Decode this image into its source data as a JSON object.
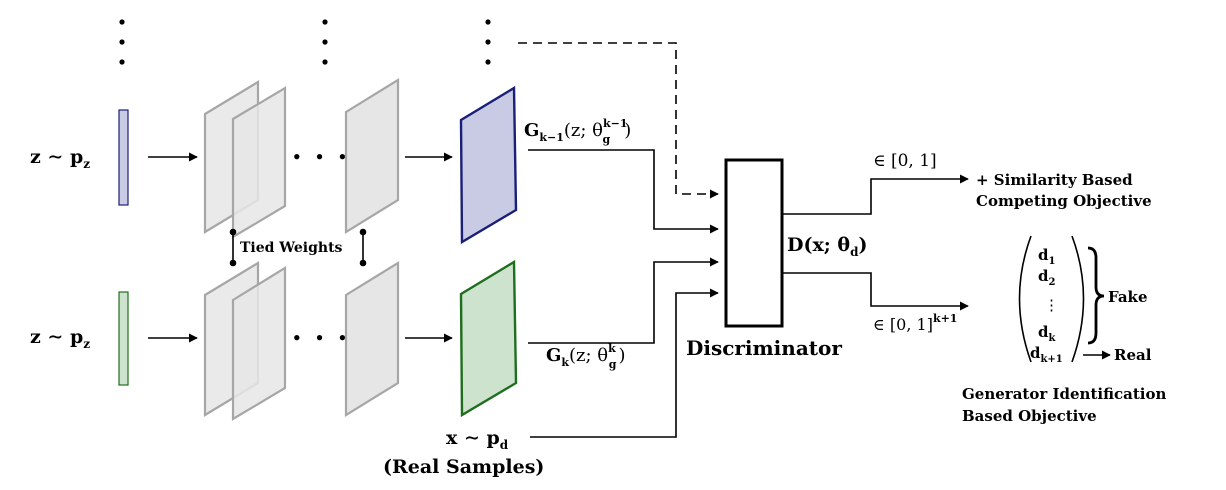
{
  "inputs": {
    "top": {
      "z": "z",
      "tilde": " ∼ ",
      "p": "p",
      "p_sub": "z"
    },
    "bottom": {
      "z": "z",
      "tilde": " ∼ ",
      "p": "p",
      "p_sub": "z"
    }
  },
  "tied_weights": "Tied Weights",
  "ellipsis": "• • •",
  "generator_top_output": {
    "name": "G",
    "name_sub": "k−1",
    "arg": "(z; θ",
    "sup": "k−1",
    "sub": "g",
    "close": ")"
  },
  "generator_bottom_output": {
    "name": "G",
    "name_sub": "k",
    "arg": "(z; θ",
    "sup": "k",
    "sub": "g",
    "close": ")"
  },
  "real_input": {
    "x": "x",
    "tilde": " ∼ ",
    "p": "p",
    "p_sub": "d",
    "caption": "(Real Samples)"
  },
  "discriminator": {
    "label": "Discriminator",
    "func": "D(x; θ",
    "func_sub": "d",
    "func_close": ")"
  },
  "output_top": {
    "range": "∈ [0, 1]",
    "label_line1": "+ Similarity Based",
    "label_line2": "Competing Objective"
  },
  "output_bottom": {
    "range": "∈ [0, 1]",
    "range_sup": "k+1"
  },
  "vector": {
    "entries": [
      {
        "base": "d",
        "sub": "1"
      },
      {
        "base": "d",
        "sub": "2"
      },
      {
        "base": "d",
        "sub": "k"
      },
      {
        "base": "d",
        "sub": "k+1"
      }
    ],
    "vdots": "⋮",
    "fake_label": "Fake",
    "real_label": "Real"
  },
  "objective_bottom": {
    "line1": "Generator Identification",
    "line2": "Based Objective"
  },
  "colors": {
    "top_fill": "#c8cbe3",
    "top_stroke": "#1a1f78",
    "bottom_fill": "#cde3cd",
    "bottom_stroke": "#1f6e1f",
    "layer_fill": "#e6e6e6",
    "layer_stroke": "#a6a6a6"
  }
}
